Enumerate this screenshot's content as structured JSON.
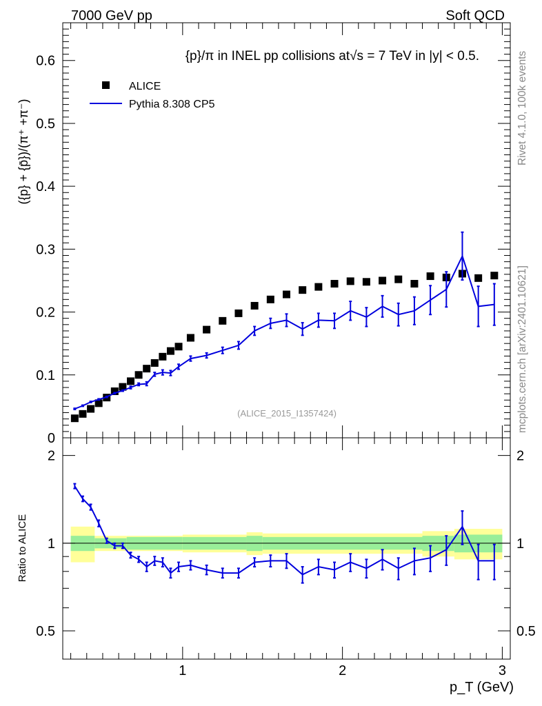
{
  "header": {
    "left": "7000 GeV pp",
    "right": "Soft QCD"
  },
  "side_labels": {
    "rivet": "Rivet 4.1.0,  100k events",
    "mcplots": "mcplots.cern.ch [arXiv:2401.10621]"
  },
  "chart_data": [
    {
      "type": "scatter",
      "panel": "main",
      "title": "{p}/π in INEL pp collisions at√s =  7 TeV in |y| < 0.5.",
      "watermark": "(ALICE_2015_I1357424)",
      "xlabel": "p_T (GeV)",
      "ylabel": "({p} + {p̄})/(π⁺ +π⁻)",
      "xlim": [
        0.25,
        3.05
      ],
      "ylim": [
        0,
        0.66
      ],
      "y_ticks": [
        "0",
        "0.1",
        "0.2",
        "0.3",
        "0.4",
        "0.5",
        "0.6"
      ],
      "x_ticks": [
        "1",
        "2",
        "3"
      ],
      "legend": [
        {
          "label": "ALICE",
          "style": "square-marker",
          "color": "#000000"
        },
        {
          "label": "Pythia 8.308 CP5",
          "style": "line",
          "color": "#0000dd"
        }
      ],
      "series": [
        {
          "name": "ALICE",
          "color": "#000000",
          "x": [
            0.325,
            0.375,
            0.425,
            0.475,
            0.525,
            0.575,
            0.625,
            0.675,
            0.725,
            0.775,
            0.825,
            0.875,
            0.925,
            0.975,
            1.05,
            1.15,
            1.25,
            1.35,
            1.45,
            1.55,
            1.65,
            1.75,
            1.85,
            1.95,
            2.05,
            2.15,
            2.25,
            2.35,
            2.45,
            2.55,
            2.65,
            2.75,
            2.85,
            2.95
          ],
          "y": [
            0.031,
            0.038,
            0.046,
            0.055,
            0.064,
            0.074,
            0.081,
            0.09,
            0.1,
            0.11,
            0.119,
            0.129,
            0.138,
            0.145,
            0.159,
            0.172,
            0.186,
            0.198,
            0.21,
            0.22,
            0.228,
            0.235,
            0.24,
            0.245,
            0.249,
            0.248,
            0.25,
            0.252,
            0.245,
            0.257,
            0.255,
            0.261,
            0.254,
            0.258
          ]
        },
        {
          "name": "Pythia 8.308 CP5",
          "color": "#0000dd",
          "x": [
            0.325,
            0.375,
            0.425,
            0.475,
            0.525,
            0.575,
            0.625,
            0.675,
            0.725,
            0.775,
            0.825,
            0.875,
            0.925,
            0.975,
            1.05,
            1.15,
            1.25,
            1.35,
            1.45,
            1.55,
            1.65,
            1.75,
            1.85,
            1.95,
            2.05,
            2.15,
            2.25,
            2.35,
            2.45,
            2.55,
            2.65,
            2.75,
            2.85,
            2.95
          ],
          "y": [
            0.046,
            0.051,
            0.057,
            0.061,
            0.065,
            0.071,
            0.075,
            0.08,
            0.085,
            0.086,
            0.101,
            0.104,
            0.103,
            0.113,
            0.126,
            0.131,
            0.139,
            0.147,
            0.17,
            0.182,
            0.187,
            0.173,
            0.187,
            0.186,
            0.202,
            0.192,
            0.209,
            0.196,
            0.202,
            0.219,
            0.236,
            0.289,
            0.209,
            0.212
          ],
          "err": [
            0.001,
            0.001,
            0.001,
            0.001,
            0.001,
            0.001,
            0.001,
            0.002,
            0.002,
            0.003,
            0.003,
            0.004,
            0.004,
            0.004,
            0.004,
            0.004,
            0.005,
            0.006,
            0.007,
            0.008,
            0.01,
            0.01,
            0.011,
            0.012,
            0.015,
            0.015,
            0.017,
            0.018,
            0.022,
            0.023,
            0.028,
            0.038,
            0.032,
            0.033
          ]
        }
      ]
    },
    {
      "type": "line",
      "panel": "ratio",
      "ylabel": "Ratio to ALICE",
      "xlabel": "p_T (GeV)",
      "xlim": [
        0.25,
        3.05
      ],
      "ylim": [
        0.4,
        2.3
      ],
      "y_ticks": [
        "0.5",
        "1",
        "2"
      ],
      "x_ticks": [
        "1",
        "2",
        "3"
      ],
      "reference_line": 1.0,
      "band_x_edges": [
        0.3,
        0.45,
        0.65,
        1.0,
        1.4,
        1.5,
        2.5,
        2.7,
        3.0
      ],
      "band_inner": [
        0.06,
        0.04,
        0.05,
        0.05,
        0.06,
        0.05,
        0.06,
        0.07
      ],
      "band_outer": [
        0.14,
        0.06,
        0.06,
        0.07,
        0.09,
        0.08,
        0.1,
        0.12
      ],
      "series": [
        {
          "name": "Pythia 8.308 CP5 / ALICE",
          "color": "#0000dd",
          "x": [
            0.325,
            0.375,
            0.425,
            0.475,
            0.525,
            0.575,
            0.625,
            0.675,
            0.725,
            0.775,
            0.825,
            0.875,
            0.925,
            0.975,
            1.05,
            1.15,
            1.25,
            1.35,
            1.45,
            1.55,
            1.65,
            1.75,
            1.85,
            1.95,
            2.05,
            2.15,
            2.25,
            2.35,
            2.45,
            2.55,
            2.65,
            2.75,
            2.85,
            2.95
          ],
          "y": [
            1.57,
            1.42,
            1.33,
            1.17,
            1.02,
            0.98,
            0.98,
            0.91,
            0.88,
            0.83,
            0.87,
            0.86,
            0.79,
            0.83,
            0.84,
            0.81,
            0.79,
            0.79,
            0.86,
            0.87,
            0.87,
            0.78,
            0.83,
            0.81,
            0.86,
            0.82,
            0.88,
            0.82,
            0.87,
            0.89,
            0.95,
            1.14,
            0.87,
            0.87
          ],
          "err": [
            0.03,
            0.03,
            0.03,
            0.03,
            0.02,
            0.02,
            0.02,
            0.02,
            0.02,
            0.03,
            0.03,
            0.03,
            0.03,
            0.03,
            0.03,
            0.03,
            0.03,
            0.03,
            0.03,
            0.04,
            0.05,
            0.05,
            0.05,
            0.05,
            0.06,
            0.06,
            0.07,
            0.07,
            0.09,
            0.09,
            0.11,
            0.15,
            0.12,
            0.12
          ]
        }
      ]
    }
  ]
}
